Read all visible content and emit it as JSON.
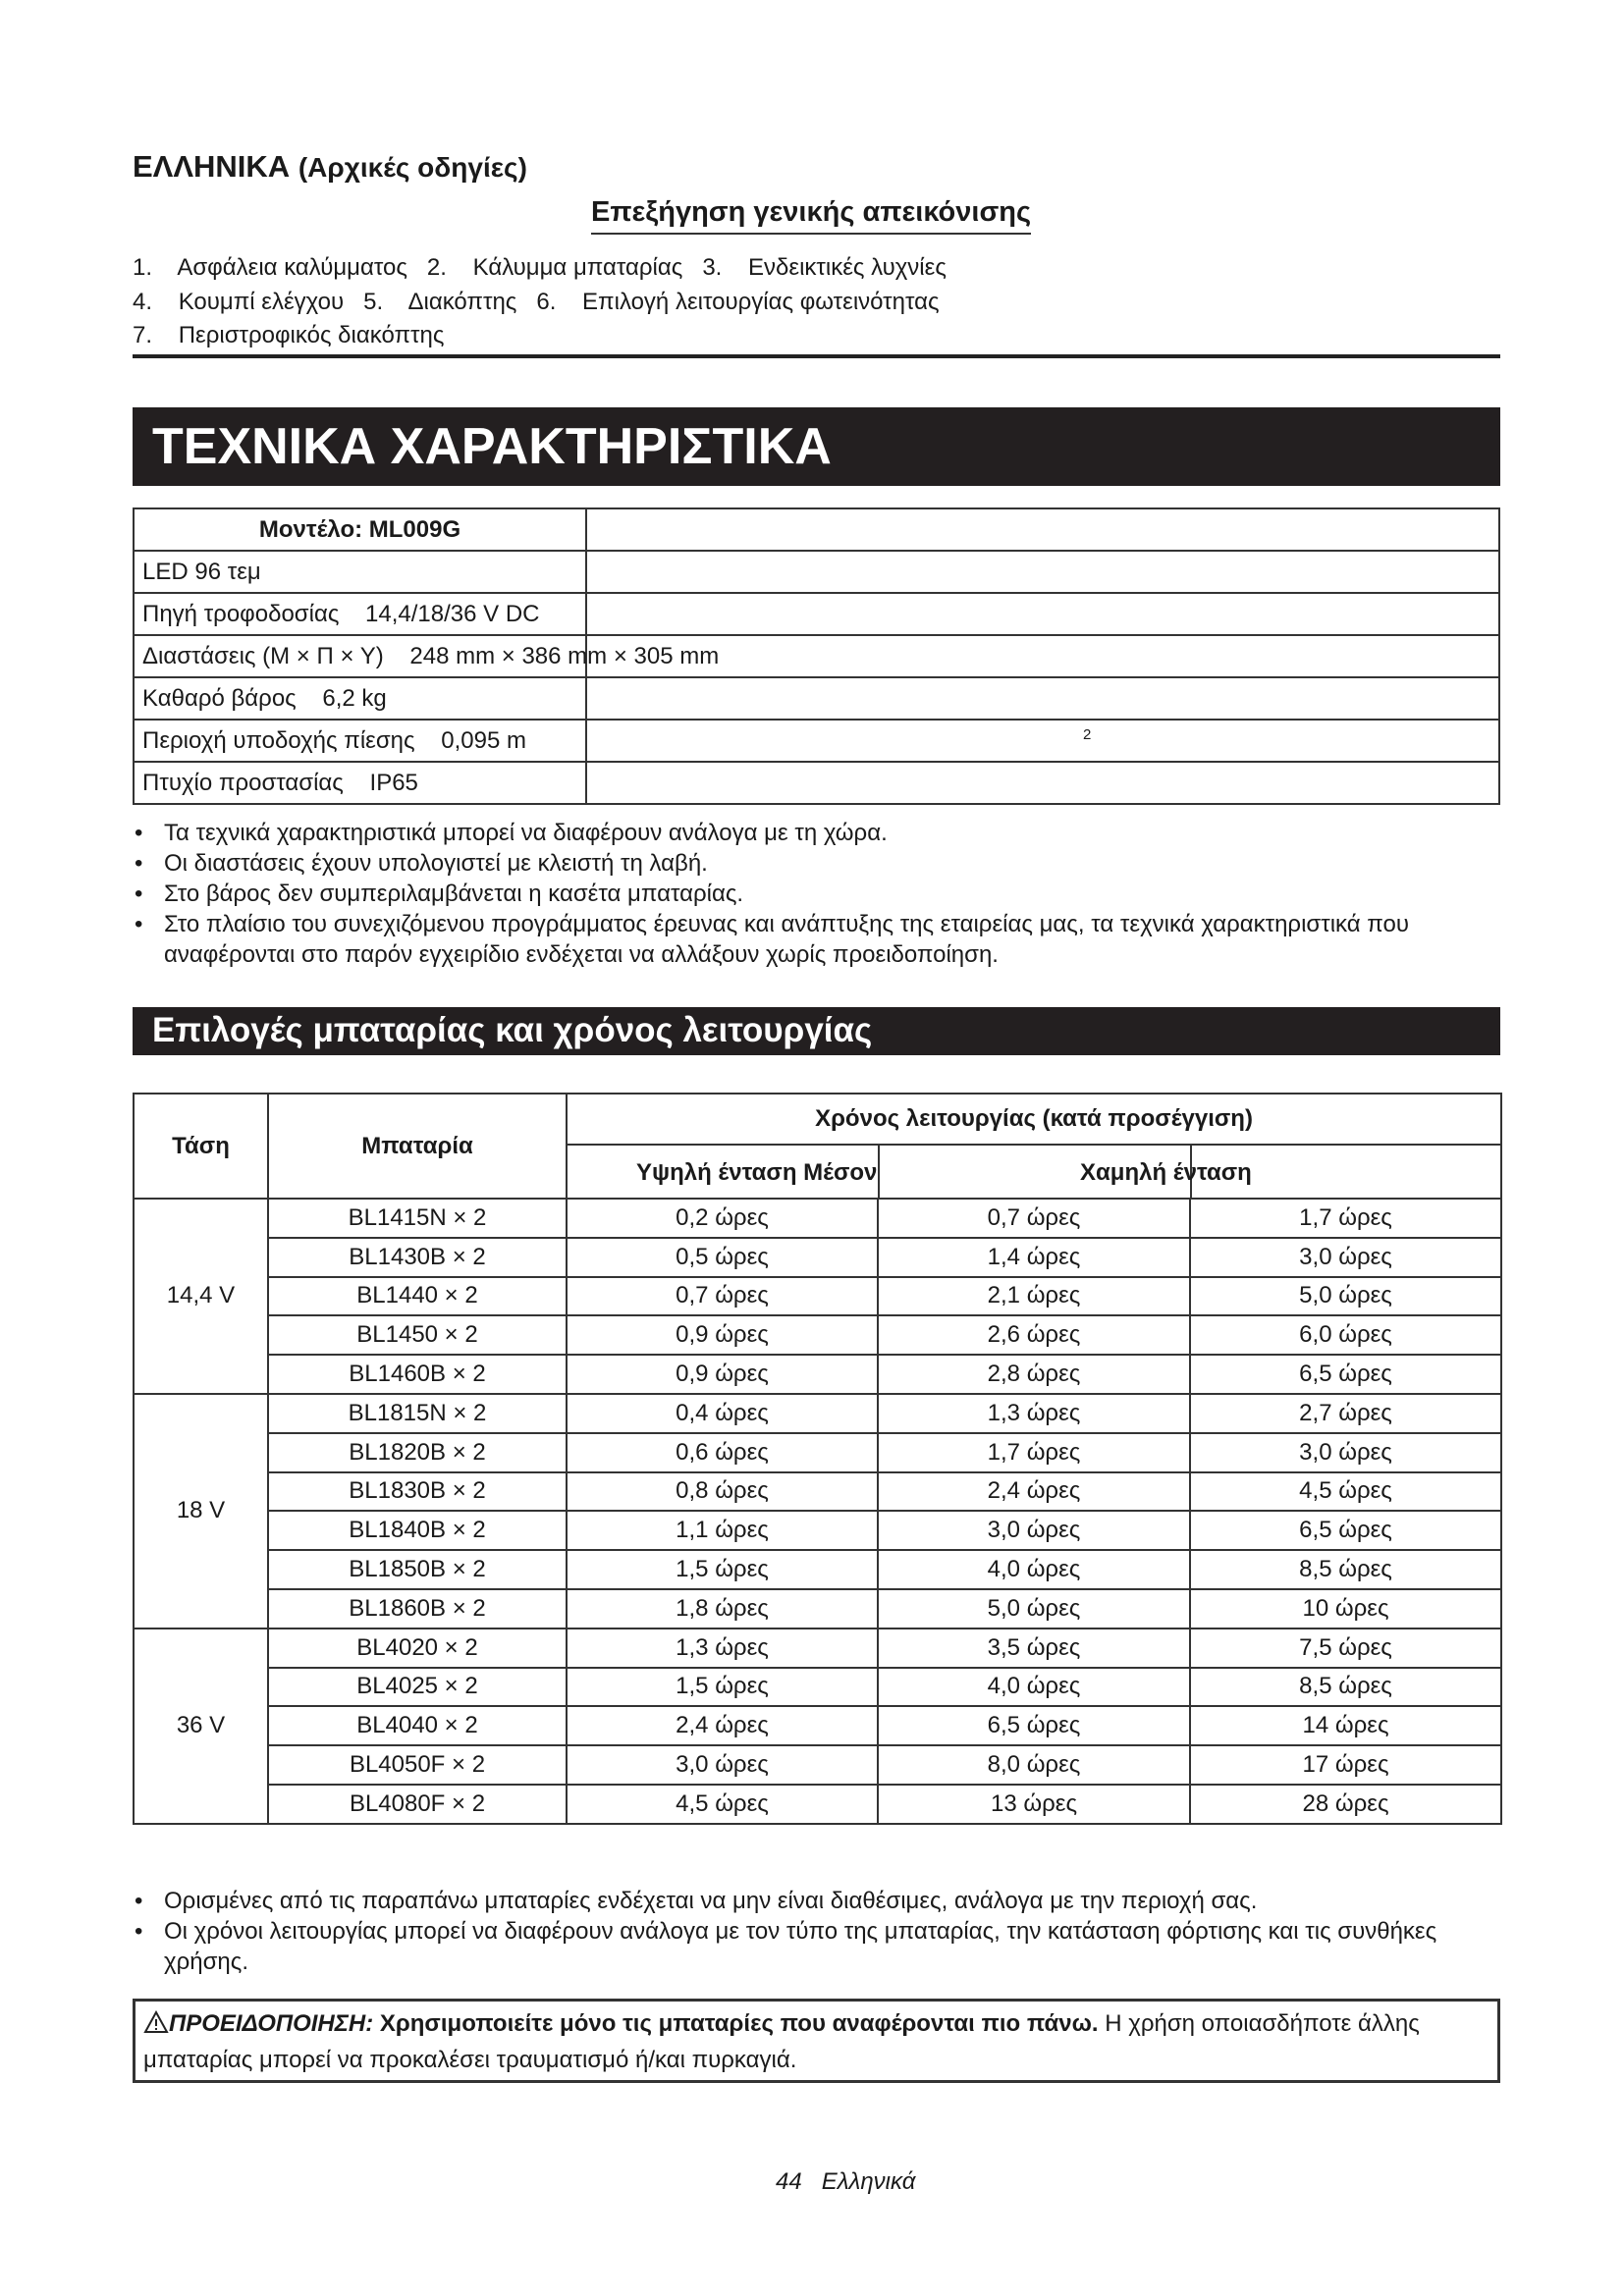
{
  "header": {
    "lang": "ΕΛΛΗΝΙΚΑ",
    "lang_sub": "(Αρχικές οδηγίες)",
    "overview_title": "Επεξήγηση γενικής απεικόνισης",
    "parts_lines": [
      "1.    Ασφάλεια καλύμματος   2.    Κάλυμμα μπαταρίας   3.    Ενδεικτικές λυχνίες",
      "4.    Κουμπί ελέγχου   5.    Διακόπτης   6.    Επιλογή λειτουργίας φωτεινότητας",
      "7.    Περιστροφικός διακόπτης"
    ]
  },
  "specs": {
    "banner": "ΤΕΧΝΙΚΑ ΧΑΡΑΚΤΗΡΙΣΤΙΚΑ",
    "rows": [
      "Μοντέλο: ML009G",
      "LED 96 τεμ",
      "Πηγή τροφοδοσίας    14,4/18/36 V DC",
      "Διαστάσεις (Μ × Π × Υ)    248 mm × 386 mm × 305 mm",
      "Καθαρό βάρος    6,2 kg",
      "Περιοχή υποδοχής πίεσης    0,095 m",
      "Πτυχίο προστασίας    IP65"
    ],
    "superscript": "2",
    "notes": [
      "Τα τεχνικά χαρακτηριστικά μπορεί να διαφέρουν ανάλογα με τη χώρα.",
      "Οι διαστάσεις έχουν υπολογιστεί με κλειστή τη λαβή.",
      "Στο βάρος δεν συμπεριλαμβάνεται η κασέτα μπαταρίας.",
      "Στο πλαίσιο του συνεχιζόμενου προγράμματος έρευνας και ανάπτυξης της εταιρείας μας, τα τεχνικά χαρακτηριστικά που αναφέρονται στο παρόν εγχειρίδιο ενδέχεται να αλλάξουν χωρίς προειδοποίηση."
    ]
  },
  "battery": {
    "banner": "Επιλογές μπαταρίας και χρόνος λειτουργίας",
    "headers": {
      "voltage": "Τάση",
      "battery": "Μπαταρία",
      "runtime": "Χρόνος λειτουργίας (κατά προσέγγιση)",
      "high_mid": "Υψηλή ένταση Μέσον",
      "low": "Χαμηλή ένταση"
    },
    "groups": [
      {
        "voltage": "14,4 V",
        "rows": [
          [
            "BL1415N × 2",
            "0,2 ώρες",
            "0,7 ώρες",
            "1,7 ώρες"
          ],
          [
            "BL1430B × 2",
            "0,5 ώρες",
            "1,4 ώρες",
            "3,0 ώρες"
          ],
          [
            "BL1440 × 2",
            "0,7 ώρες",
            "2,1 ώρες",
            "5,0 ώρες"
          ],
          [
            "BL1450 × 2",
            "0,9 ώρες",
            "2,6 ώρες",
            "6,0 ώρες"
          ],
          [
            "BL1460B × 2",
            "0,9 ώρες",
            "2,8 ώρες",
            "6,5 ώρες"
          ]
        ]
      },
      {
        "voltage": "18 V",
        "rows": [
          [
            "BL1815N × 2",
            "0,4 ώρες",
            "1,3 ώρες",
            "2,7 ώρες"
          ],
          [
            "BL1820B × 2",
            "0,6 ώρες",
            "1,7 ώρες",
            "3,0 ώρες"
          ],
          [
            "BL1830B × 2",
            "0,8 ώρες",
            "2,4 ώρες",
            "4,5 ώρες"
          ],
          [
            "BL1840B × 2",
            "1,1 ώρες",
            "3,0 ώρες",
            "6,5 ώρες"
          ],
          [
            "BL1850B × 2",
            "1,5 ώρες",
            "4,0 ώρες",
            "8,5 ώρες"
          ],
          [
            "BL1860B × 2",
            "1,8 ώρες",
            "5,0 ώρες",
            "10 ώρες"
          ]
        ]
      },
      {
        "voltage": "36 V",
        "rows": [
          [
            "BL4020 × 2",
            "1,3 ώρες",
            "3,5 ώρες",
            "7,5 ώρες"
          ],
          [
            "BL4025 × 2",
            "1,5 ώρες",
            "4,0 ώρες",
            "8,5 ώρες"
          ],
          [
            "BL4040 × 2",
            "2,4 ώρες",
            "6,5 ώρες",
            "14 ώρες"
          ],
          [
            "BL4050F × 2",
            "3,0 ώρες",
            "8,0 ώρες",
            "17 ώρες"
          ],
          [
            "BL4080F × 2",
            "4,5 ώρες",
            "13 ώρες",
            "28 ώρες"
          ]
        ]
      }
    ],
    "notes": [
      "Ορισμένες από τις παραπάνω μπαταρίες ενδέχεται να μην είναι διαθέσιμες, ανάλογα με την περιοχή σας.",
      "Οι χρόνοι λειτουργίας μπορεί να διαφέρουν ανάλογα με τον τύπο της μπαταρίας, την κατάσταση φόρτισης και τις συνθήκες χρήσης."
    ]
  },
  "warning": {
    "icon": "warning-triangle-icon",
    "label": "ΠΡΟΕΙΔΟΠΟΙΗΣΗ:",
    "bold": " Χρησιμοποιείτε μόνο τις μπαταρίες που αναφέρονται πιο πάνω.",
    "text": " Η χρήση οποιασδήποτε άλλης μπαταρίας μπορεί να προκαλέσει τραυματισμό ή/και πυρκαγιά."
  },
  "footer": {
    "page": "44",
    "lang": "Ελληνικά"
  }
}
